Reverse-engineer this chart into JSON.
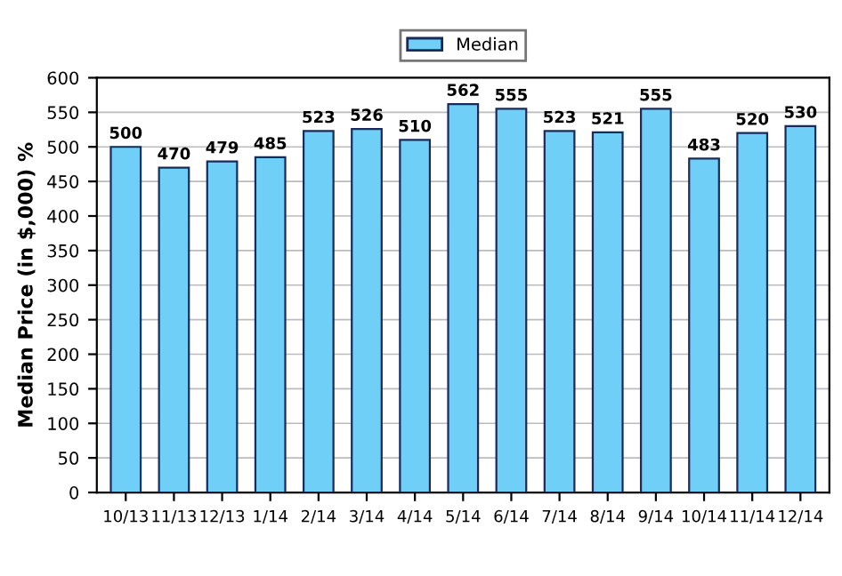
{
  "chart_data": {
    "type": "bar",
    "ylabel": "Median Price (in $,000) %",
    "categories": [
      "10/13",
      "11/13",
      "12/13",
      "1/14",
      "2/14",
      "3/14",
      "4/14",
      "5/14",
      "6/14",
      "7/14",
      "8/14",
      "9/14",
      "10/14",
      "11/14",
      "12/14"
    ],
    "series": [
      {
        "name": "Median",
        "color": "#6fcff7",
        "values": [
          500,
          470,
          479,
          485,
          523,
          526,
          510,
          562,
          555,
          523,
          521,
          555,
          483,
          520,
          530
        ]
      }
    ],
    "ylim": [
      0,
      600
    ],
    "yticks": [
      0,
      50,
      100,
      150,
      200,
      250,
      300,
      350,
      400,
      450,
      500,
      550,
      600
    ],
    "grid": "y",
    "legend": "top",
    "data_labels": true
  }
}
